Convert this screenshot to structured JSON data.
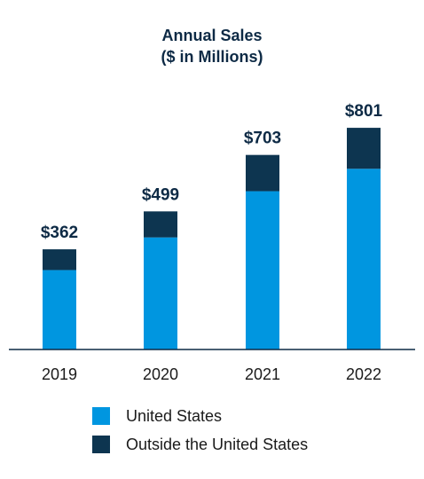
{
  "chart_data": {
    "type": "bar",
    "stacked": true,
    "title": "Annual Sales",
    "subtitle": "($ in Millions)",
    "categories": [
      "2019",
      "2020",
      "2021",
      "2022"
    ],
    "totals_labels": [
      "$362",
      "$499",
      "$703",
      "$801"
    ],
    "series": [
      {
        "name": "United States",
        "color": "#0096e0",
        "values": [
          287,
          405,
          572,
          653
        ]
      },
      {
        "name": "Outside the United States",
        "color": "#0d3550",
        "values": [
          75,
          94,
          131,
          148
        ]
      }
    ],
    "ylim": [
      0,
      900
    ],
    "grid": false,
    "legend_position": "bottom"
  }
}
